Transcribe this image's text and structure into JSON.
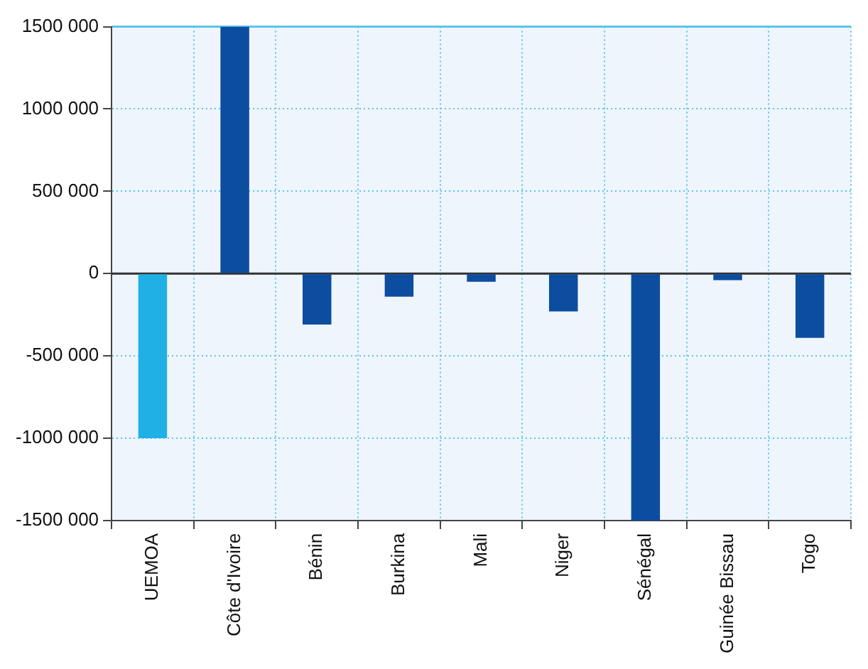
{
  "chart_data": {
    "type": "bar",
    "categories": [
      "UEMOA",
      "Côte d'Ivoire",
      "Bénin",
      "Burkina",
      "Mali",
      "Niger",
      "Sénégal",
      "Guinée Bissau",
      "Togo"
    ],
    "values": [
      -1000000,
      1500000,
      -310000,
      -140000,
      -50000,
      -230000,
      -1500000,
      -40000,
      -390000
    ],
    "colors": [
      "#1fb0e6",
      "#0c4da0",
      "#0c4da0",
      "#0c4da0",
      "#0c4da0",
      "#0c4da0",
      "#0c4da0",
      "#0c4da0",
      "#0c4da0"
    ],
    "ylim": [
      -1500000,
      1500000
    ],
    "yticks": [
      {
        "value": 1500000,
        "label": "1500 000"
      },
      {
        "value": 1000000,
        "label": "1000 000"
      },
      {
        "value": 500000,
        "label": "500 000"
      },
      0,
      {
        "value": -500000,
        "label": "-500 000"
      },
      {
        "value": -1000000,
        "label": "-1000 000"
      },
      {
        "value": -1500000,
        "label": "-1500 000"
      }
    ],
    "ref_lines": [
      {
        "axis": "y",
        "value": 0,
        "color": "#333333"
      }
    ],
    "grid": true,
    "legend": false
  }
}
